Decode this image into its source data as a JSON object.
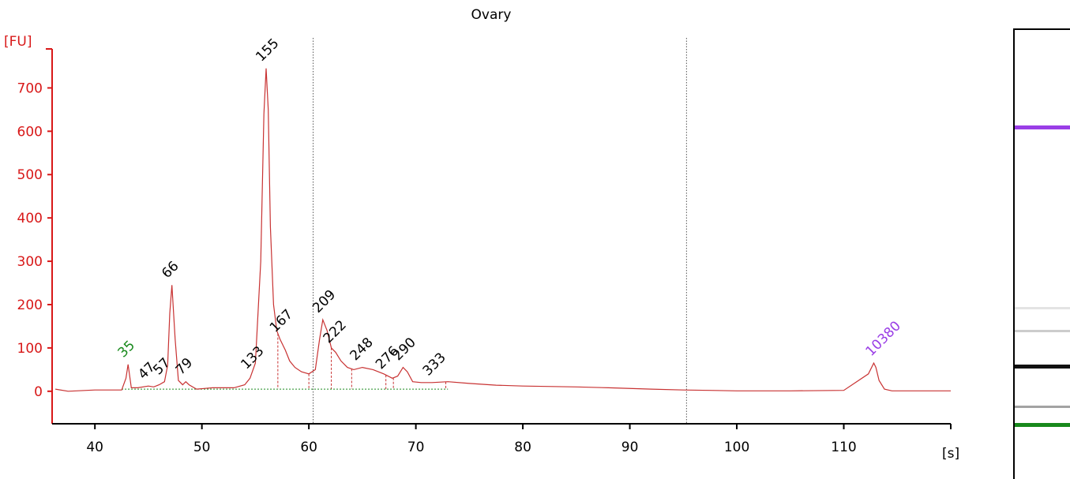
{
  "chart_data": {
    "type": "line",
    "title": "Ovary",
    "ylabel": "[FU]",
    "xlabel": "[s]",
    "xlim": [
      36,
      120
    ],
    "ylim": [
      -75,
      790
    ],
    "x_ticks": [
      40,
      50,
      60,
      70,
      80,
      90,
      100,
      110
    ],
    "y_ticks": [
      0,
      100,
      200,
      300,
      400,
      500,
      600,
      700
    ],
    "vertical_markers": [
      60.4,
      95.3
    ],
    "colors": {
      "trace": "#c83232",
      "axis": "#d81818",
      "lower_marker": "#18891c",
      "upper_marker": "#9a3ee6",
      "peak_label": "#000000"
    },
    "series": [
      {
        "x": [
          36.3,
          37.5,
          40,
          42.5,
          42.9,
          43.1,
          43.4,
          44,
          45,
          45.5,
          46,
          46.5,
          46.8,
          47.0,
          47.2,
          47.5,
          47.8,
          48.2,
          48.5,
          48.8,
          49.5,
          51,
          53,
          54,
          54.5,
          55,
          55.5,
          55.8,
          56.0,
          56.2,
          56.4,
          56.7,
          57.0,
          57.3,
          57.8,
          58.2,
          58.7,
          59.3,
          60.0,
          60.6,
          61.0,
          61.3,
          61.7,
          62.1,
          62.5,
          63.0,
          63.6,
          64.2,
          65.0,
          66.0,
          67.0,
          67.8,
          68.3,
          68.8,
          69.2,
          69.7,
          70.5,
          71.5,
          73,
          75,
          77.5,
          80,
          85,
          88,
          92,
          95,
          97.5,
          100,
          105,
          110,
          112.3,
          112.8,
          113.0,
          113.3,
          113.8,
          114.5,
          120
        ],
        "y": [
          5,
          0,
          3,
          3,
          30,
          62,
          8,
          8,
          12,
          10,
          15,
          22,
          60,
          180,
          245,
          120,
          25,
          15,
          22,
          15,
          5,
          8,
          8,
          15,
          30,
          65,
          300,
          640,
          745,
          650,
          380,
          200,
          140,
          120,
          95,
          70,
          55,
          45,
          40,
          50,
          120,
          165,
          140,
          100,
          90,
          70,
          55,
          50,
          55,
          50,
          40,
          30,
          35,
          55,
          45,
          22,
          20,
          20,
          22,
          18,
          14,
          12,
          10,
          8,
          5,
          3,
          2,
          1,
          1,
          2,
          40,
          65,
          55,
          25,
          5,
          1,
          1
        ]
      }
    ],
    "peaks": [
      {
        "label": "35",
        "x": 43.1,
        "y": 62,
        "color": "lower_marker"
      },
      {
        "label": "47",
        "x": 45.0,
        "y": 12
      },
      {
        "label": "57",
        "x": 46.4,
        "y": 22
      },
      {
        "label": "66",
        "x": 47.2,
        "y": 245
      },
      {
        "label": "79",
        "x": 48.5,
        "y": 22
      },
      {
        "label": "133",
        "x": 54.6,
        "y": 35
      },
      {
        "label": "155",
        "x": 56.0,
        "y": 745
      },
      {
        "label": "167",
        "x": 57.3,
        "y": 120
      },
      {
        "label": "209",
        "x": 61.3,
        "y": 165
      },
      {
        "label": "222",
        "x": 62.3,
        "y": 95
      },
      {
        "label": "248",
        "x": 64.8,
        "y": 55
      },
      {
        "label": "276",
        "x": 67.2,
        "y": 35
      },
      {
        "label": "290",
        "x": 68.8,
        "y": 55
      },
      {
        "label": "333",
        "x": 71.6,
        "y": 20
      },
      {
        "label": "10380",
        "x": 113.0,
        "y": 65,
        "color": "upper_marker"
      }
    ],
    "dashed_drops": [
      57.1,
      60.0,
      62.1,
      64.0,
      67.2,
      67.9,
      72.8
    ],
    "gel": {
      "background": "#ffffff",
      "bands": [
        {
          "pos": 0.217,
          "color": "#9a3ee6",
          "strength": 1.0
        },
        {
          "pos": 0.62,
          "color": "#bbbbbb",
          "strength": 0.4
        },
        {
          "pos": 0.67,
          "color": "#999999",
          "strength": 0.5
        },
        {
          "pos": 0.75,
          "color": "#111111",
          "strength": 1.0
        },
        {
          "pos": 0.84,
          "color": "#666666",
          "strength": 0.6
        },
        {
          "pos": 0.88,
          "color": "#18891c",
          "strength": 1.0
        }
      ]
    }
  }
}
